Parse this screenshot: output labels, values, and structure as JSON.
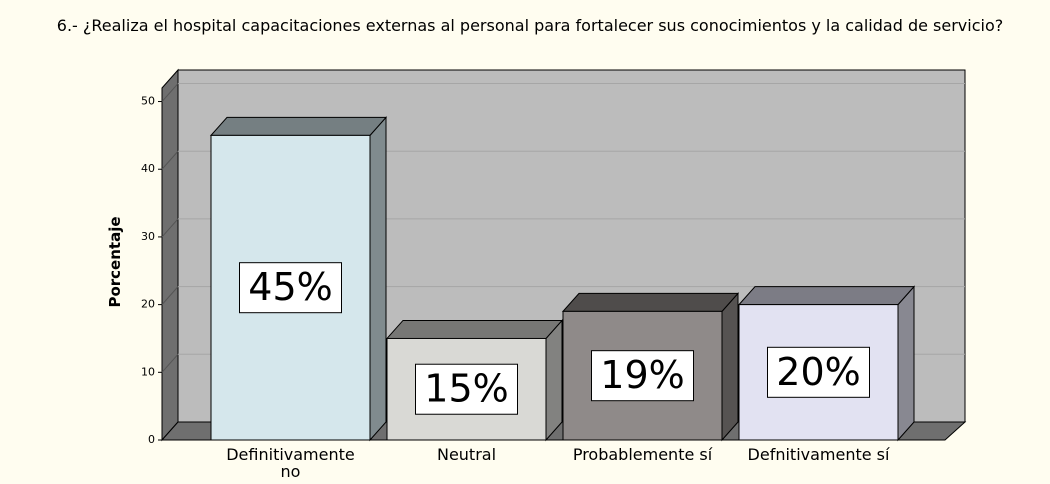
{
  "chart_data": {
    "type": "bar3d",
    "title": "6.- ¿Realiza el hospital capacitaciones externas al personal para fortalecer sus conocimientos y la calidad de servicio?",
    "y_label": "Porcentaje",
    "categories": [
      "Definitivamente no",
      "Neutral",
      "Probablemente sí",
      "Defnitivamente sí"
    ],
    "values": [
      45,
      15,
      19,
      20
    ],
    "value_labels": [
      "45%",
      "15%",
      "19%",
      "20%"
    ],
    "colors": [
      "#d5e7ec",
      "#d9d9d5",
      "#8f8a89",
      "#e2e2f2"
    ],
    "ylim": [
      0,
      52
    ],
    "yticks": [
      0,
      10,
      20,
      30,
      40,
      50
    ],
    "grid": true
  }
}
